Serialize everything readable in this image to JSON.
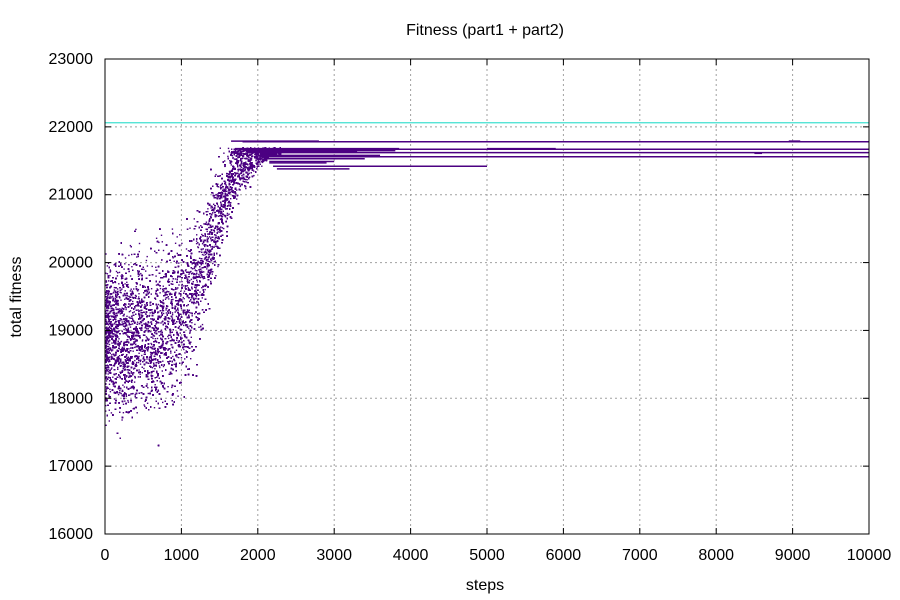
{
  "chart_data": {
    "type": "scatter",
    "title": "Fitness (part1 + part2)",
    "xlabel": "steps",
    "ylabel": "total fitness",
    "xlim": [
      0,
      10000
    ],
    "ylim": [
      16000,
      23000
    ],
    "x_ticks": [
      "0",
      "1000",
      "2000",
      "3000",
      "4000",
      "5000",
      "6000",
      "7000",
      "8000",
      "9000",
      "10000"
    ],
    "y_ticks": [
      "16000",
      "17000",
      "18000",
      "19000",
      "20000",
      "21000",
      "22000",
      "23000"
    ],
    "grid": true,
    "colors": {
      "points": "#4b0082",
      "reference": "#40e0d0",
      "grid": "#a0a0a0"
    },
    "reference_line": {
      "y": 22060
    },
    "scatter_cloud": {
      "description_free_params": true,
      "mean_curve": [
        [
          0,
          18900
        ],
        [
          600,
          18950
        ],
        [
          1000,
          19300
        ],
        [
          1300,
          20000
        ],
        [
          1500,
          20800
        ],
        [
          1700,
          21400
        ],
        [
          2000,
          21600
        ],
        [
          2200,
          21650
        ]
      ],
      "count": 24000,
      "x_range": [
        0,
        2300
      ]
    },
    "plateau_segments": [
      {
        "y": 21790,
        "x0": 1650,
        "x1": 2800
      },
      {
        "y": 21790,
        "x0": 8950,
        "x1": 9100
      },
      {
        "y": 21780,
        "x0": 1800,
        "x1": 10000
      },
      {
        "y": 21680,
        "x0": 1700,
        "x1": 3850
      },
      {
        "y": 21680,
        "x0": 5000,
        "x1": 5900
      },
      {
        "y": 21670,
        "x0": 1750,
        "x1": 10000
      },
      {
        "y": 21650,
        "x0": 1800,
        "x1": 3800
      },
      {
        "y": 21640,
        "x0": 1900,
        "x1": 3300
      },
      {
        "y": 21620,
        "x0": 1850,
        "x1": 10000
      },
      {
        "y": 21610,
        "x0": 8500,
        "x1": 8600
      },
      {
        "y": 21580,
        "x0": 2000,
        "x1": 3600
      },
      {
        "y": 21560,
        "x0": 2050,
        "x1": 10000
      },
      {
        "y": 21530,
        "x0": 2100,
        "x1": 3400
      },
      {
        "y": 21490,
        "x0": 2150,
        "x1": 3000
      },
      {
        "y": 21470,
        "x0": 2150,
        "x1": 2900
      },
      {
        "y": 21420,
        "x0": 2200,
        "x1": 5000
      },
      {
        "y": 21380,
        "x0": 2250,
        "x1": 3200
      }
    ]
  }
}
